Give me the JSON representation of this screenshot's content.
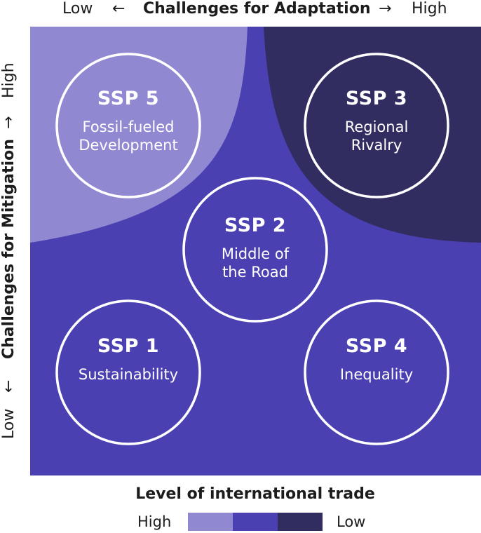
{
  "top_axis": {
    "low": "Low",
    "arrow_left": "←",
    "title": "Challenges for Adaptation",
    "arrow_right": "→",
    "high": "High"
  },
  "left_axis": {
    "low": "Low",
    "arrow_down": "←",
    "title": "Challenges for Mitigation",
    "arrow_up": "→",
    "high": "High"
  },
  "scenarios": [
    {
      "code": "SSP 5",
      "name_line1": "Fossil-fueled",
      "name_line2": "Development"
    },
    {
      "code": "SSP 3",
      "name_line1": "Regional",
      "name_line2": "Rivalry"
    },
    {
      "code": "SSP 2",
      "name_line1": "Middle of",
      "name_line2": "the Road"
    },
    {
      "code": "SSP 1",
      "name_line1": "Sustainability",
      "name_line2": ""
    },
    {
      "code": "SSP 4",
      "name_line1": "Inequality",
      "name_line2": ""
    }
  ],
  "legend": {
    "title": "Level of international trade",
    "high": "High",
    "low": "Low"
  },
  "colors": {
    "high_trade": "#9089d2",
    "medium_trade": "#4b40b2",
    "low_trade": "#322d61",
    "circle_stroke": "#ffffff"
  }
}
